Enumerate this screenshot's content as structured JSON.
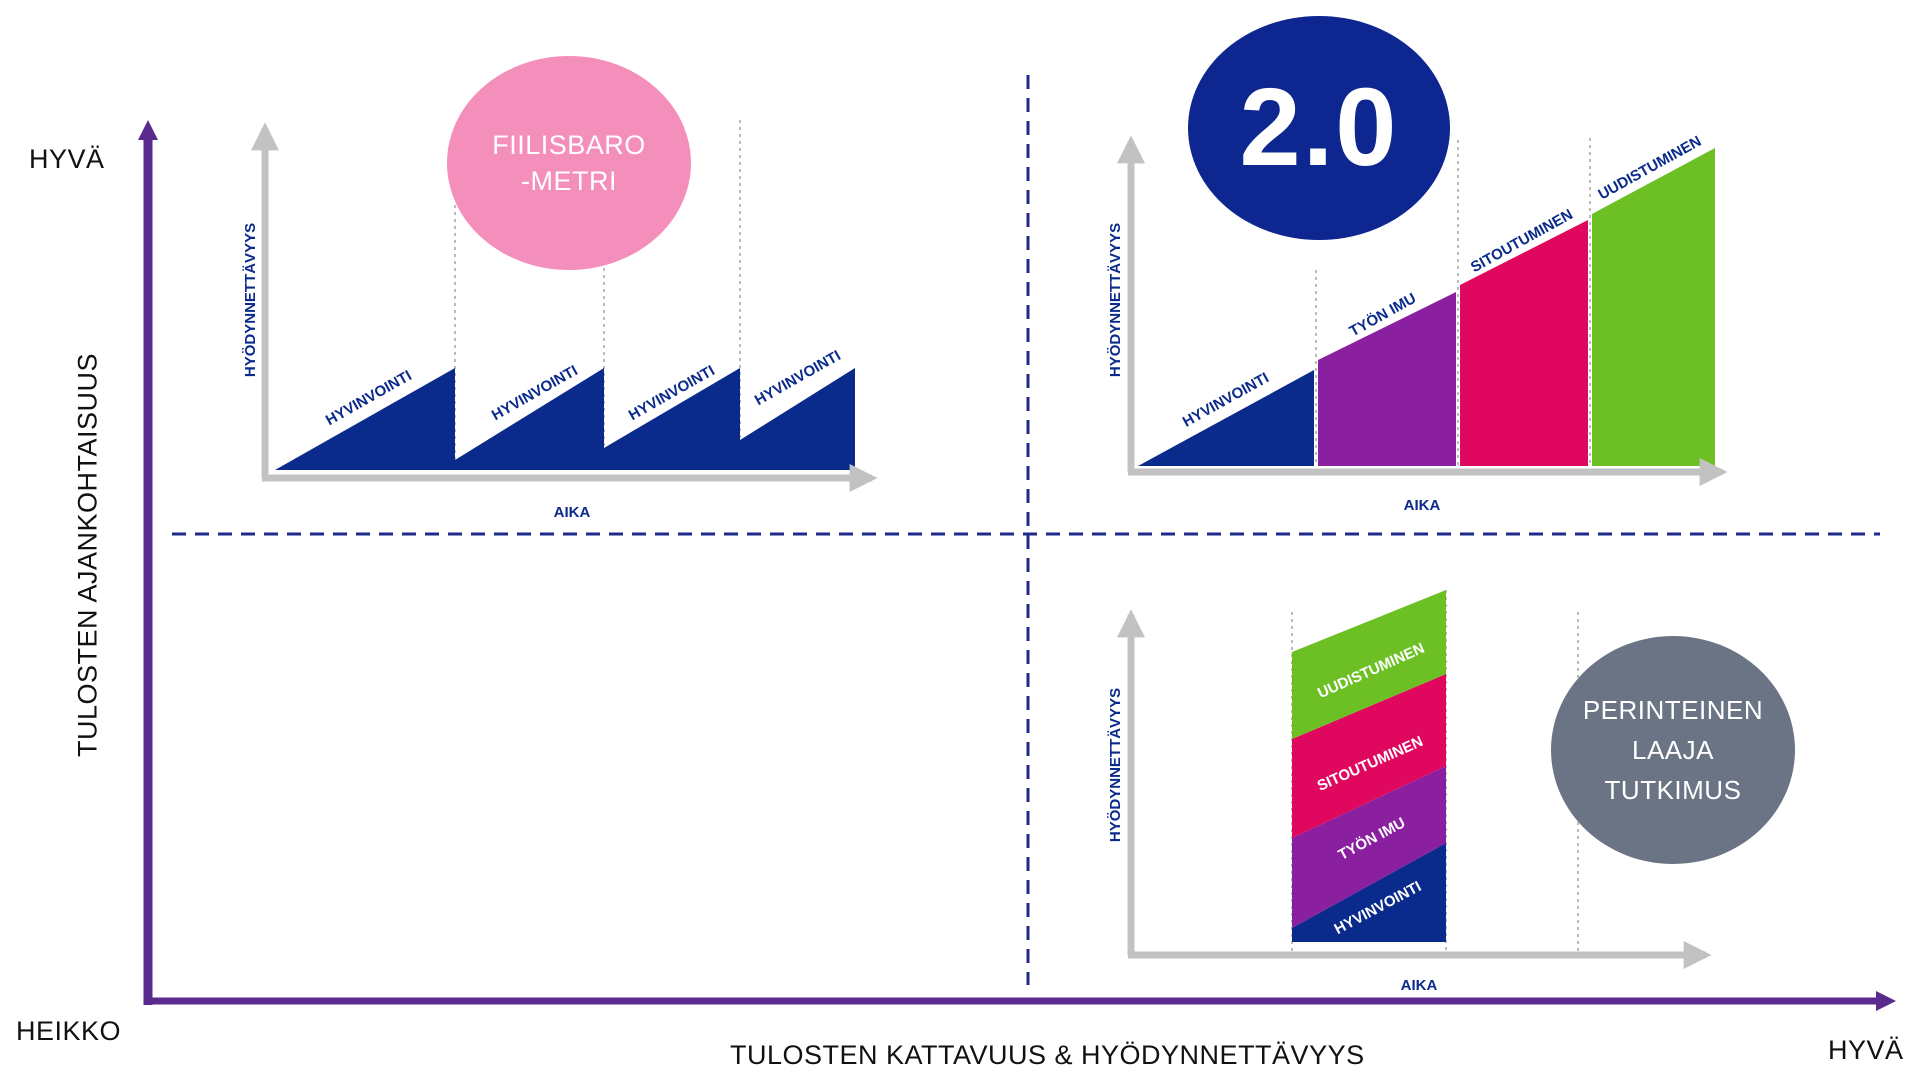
{
  "main_axes": {
    "y_label": "TULOSTEN AJANKOHTAISUUS",
    "x_label": "TULOSTEN KATTAVUUS & HYÖDYNNETTÄVYYS",
    "top_left": "HYVÄ",
    "bottom_left": "HEIKKO",
    "bottom_right": "HYVÄ",
    "axis_color": "#5b2a8e",
    "divider_color": "#1f2a8c"
  },
  "quadrants": {
    "top_left": {
      "badge": {
        "lines": [
          "FIILISBARO",
          "-METRI"
        ],
        "color": "#f48fbc"
      },
      "y_label": "HYÖDYNNETTÄVYYS",
      "x_label": "AIKA",
      "segments": [
        "HYVINVOINTI",
        "HYVINVOINTI",
        "HYVINVOINTI",
        "HYVINVOINTI"
      ],
      "segment_color": "#0a2a8c"
    },
    "top_right": {
      "badge": {
        "lines": [
          "2.0"
        ],
        "color": "#0d2690"
      },
      "y_label": "HYÖDYNNETTÄVYYS",
      "x_label": "AIKA",
      "segments": [
        {
          "label": "HYVINVOINTI",
          "color": "#0a2a8c"
        },
        {
          "label": "TYÖN IMU",
          "color": "#8a1fa0"
        },
        {
          "label": "SITOUTUMINEN",
          "color": "#e0085e"
        },
        {
          "label": "UUDISTUMINEN",
          "color": "#6cc024"
        }
      ]
    },
    "bottom_right": {
      "badge": {
        "lines": [
          "PERINTEINEN",
          "LAAJA",
          "TUTKIMUS"
        ],
        "color": "#6b7485"
      },
      "y_label": "HYÖDYNNETTÄVYYS",
      "x_label": "AIKA",
      "segments": [
        {
          "label": "HYVINVOINTI",
          "color": "#0a2a8c"
        },
        {
          "label": "TYÖN IMU",
          "color": "#8a1fa0"
        },
        {
          "label": "SITOUTUMINEN",
          "color": "#e0085e"
        },
        {
          "label": "UUDISTUMINEN",
          "color": "#6cc024"
        }
      ]
    }
  }
}
